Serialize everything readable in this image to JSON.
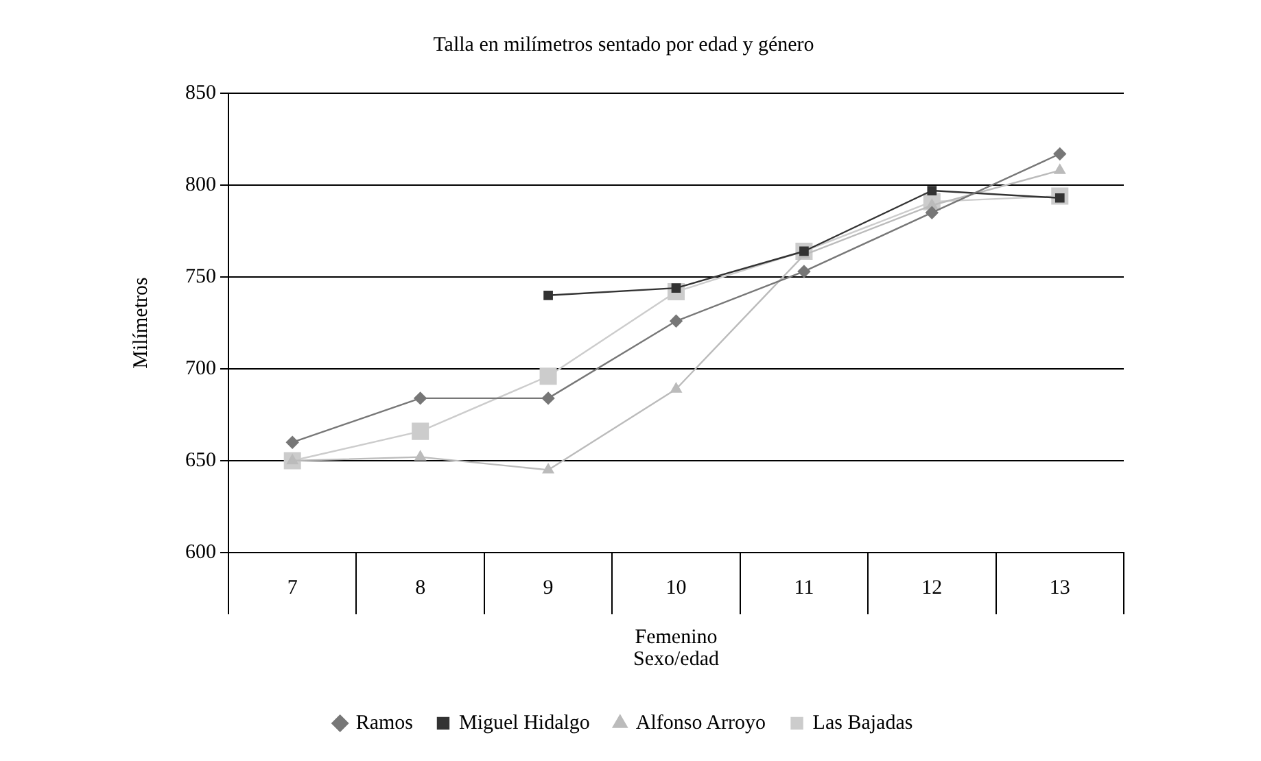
{
  "chart_data": {
    "type": "line",
    "title": "Talla en milímetros sentado por edad y género",
    "xlabel": "Sexo/edad",
    "ylabel": "Milímetros",
    "annotations": [
      "Femenino"
    ],
    "categories": [
      "7",
      "8",
      "9",
      "10",
      "11",
      "12",
      "13"
    ],
    "series": [
      {
        "name": "Ramos",
        "color": "#777777",
        "marker": "diamond",
        "values": [
          660,
          684,
          684,
          726,
          753,
          785,
          817
        ]
      },
      {
        "name": "Miguel Hidalgo",
        "color": "#333333",
        "marker": "square",
        "values": [
          null,
          null,
          740,
          744,
          764,
          797,
          793
        ]
      },
      {
        "name": "Alfonso Arroyo",
        "color": "#bbbbbb",
        "marker": "triangle",
        "values": [
          650,
          652,
          645,
          689,
          762,
          789,
          808
        ]
      },
      {
        "name": "Las Bajadas",
        "color": "#cccccc",
        "marker": "square",
        "values": [
          650,
          666,
          696,
          742,
          764,
          791,
          794
        ]
      }
    ],
    "ylim": [
      600,
      850
    ],
    "yticks": [
      600,
      650,
      700,
      750,
      800,
      850
    ],
    "grid": "y",
    "legend": "bottom",
    "line_style": "solid"
  }
}
